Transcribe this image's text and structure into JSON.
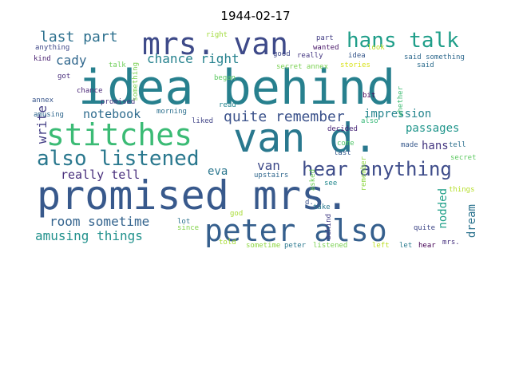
{
  "title": "1944-02-17",
  "words": [
    {
      "text": "idea behind",
      "color": "#27808e"
    },
    {
      "text": "promised mrs.",
      "color": "#38598c"
    },
    {
      "text": "van d.",
      "color": "#29788e"
    },
    {
      "text": "stitches",
      "color": "#3bbb75"
    },
    {
      "text": "peter also",
      "color": "#355f8d"
    },
    {
      "text": "mrs. van",
      "color": "#3e4a89"
    },
    {
      "text": "also listened",
      "color": "#2a788e"
    },
    {
      "text": "hans talk",
      "color": "#1f9e89"
    },
    {
      "text": "hear anything",
      "color": "#3e4c8a"
    },
    {
      "text": "last part",
      "color": "#2d708e"
    },
    {
      "text": "quite remember",
      "color": "#3b528b"
    },
    {
      "text": "amusing things",
      "color": "#21918c"
    },
    {
      "text": "room sometime",
      "color": "#33638d"
    },
    {
      "text": "chance right",
      "color": "#26828e"
    },
    {
      "text": "really tell",
      "color": "#472d7b"
    },
    {
      "text": "notebook",
      "color": "#2f6c8e"
    },
    {
      "text": "impression",
      "color": "#25858e"
    },
    {
      "text": "passages",
      "color": "#1f958b"
    },
    {
      "text": "cady",
      "color": "#31688e"
    },
    {
      "text": "van",
      "color": "#3e4a89"
    },
    {
      "text": "eva",
      "color": "#2a768e"
    },
    {
      "text": "hans",
      "color": "#453781"
    },
    {
      "text": "write",
      "color": "#433e85"
    },
    {
      "text": "nodded",
      "color": "#1fa088"
    },
    {
      "text": "dream",
      "color": "#2c738e"
    },
    {
      "text": "annex",
      "color": "#39568c"
    },
    {
      "text": "kind",
      "color": "#481f70"
    },
    {
      "text": "anything",
      "color": "#3f4889"
    },
    {
      "text": "got",
      "color": "#472c7a"
    },
    {
      "text": "chance",
      "color": "#482576"
    },
    {
      "text": "amusing",
      "color": "#31688e"
    },
    {
      "text": "morning",
      "color": "#2d708e"
    },
    {
      "text": "liked",
      "color": "#414487"
    },
    {
      "text": "promised",
      "color": "#453781"
    },
    {
      "text": "something",
      "color": "#7ad151"
    },
    {
      "text": "talk",
      "color": "#6ece58"
    },
    {
      "text": "right",
      "color": "#a0da39"
    },
    {
      "text": "good",
      "color": "#3f4788"
    },
    {
      "text": "really",
      "color": "#453882"
    },
    {
      "text": "part",
      "color": "#433e85"
    },
    {
      "text": "wanted",
      "color": "#481668"
    },
    {
      "text": "idea",
      "color": "#38588c"
    },
    {
      "text": "look",
      "color": "#bddf26"
    },
    {
      "text": "said something",
      "color": "#306a8e"
    },
    {
      "text": "said",
      "color": "#2e6e8e"
    },
    {
      "text": "secret annex",
      "color": "#7ad151"
    },
    {
      "text": "stories",
      "color": "#d8e219"
    },
    {
      "text": "began",
      "color": "#5ec962"
    },
    {
      "text": "read",
      "color": "#25858e"
    },
    {
      "text": "bit",
      "color": "#440154"
    },
    {
      "text": "whether",
      "color": "#3fbc73"
    },
    {
      "text": "decided",
      "color": "#482677"
    },
    {
      "text": "also",
      "color": "#37b878"
    },
    {
      "text": "come",
      "color": "#52c569"
    },
    {
      "text": "last",
      "color": "#375a8c"
    },
    {
      "text": "remember",
      "color": "#8fd744"
    },
    {
      "text": "made",
      "color": "#38598c"
    },
    {
      "text": "tell",
      "color": "#2d708e"
    },
    {
      "text": "secret",
      "color": "#5ec962"
    },
    {
      "text": "upstairs",
      "color": "#31688e"
    },
    {
      "text": "asked",
      "color": "#6ece58"
    },
    {
      "text": "see",
      "color": "#23888e"
    },
    {
      "text": "things",
      "color": "#b5de2b"
    },
    {
      "text": "d.",
      "color": "#3b528b"
    },
    {
      "text": "take",
      "color": "#2a788e"
    },
    {
      "text": "god",
      "color": "#a8db34"
    },
    {
      "text": "lot",
      "color": "#2c728e"
    },
    {
      "text": "since",
      "color": "#84d44b"
    },
    {
      "text": "behind",
      "color": "#433e85"
    },
    {
      "text": "quite",
      "color": "#3f4788"
    },
    {
      "text": "told",
      "color": "#a8db34"
    },
    {
      "text": "sometime",
      "color": "#8fd744"
    },
    {
      "text": "peter",
      "color": "#2a788e"
    },
    {
      "text": "listened",
      "color": "#7ad151"
    },
    {
      "text": "left",
      "color": "#bddf26"
    },
    {
      "text": "let",
      "color": "#297b8e"
    },
    {
      "text": "hear",
      "color": "#440154"
    },
    {
      "text": "mrs.",
      "color": "#46307e"
    }
  ]
}
